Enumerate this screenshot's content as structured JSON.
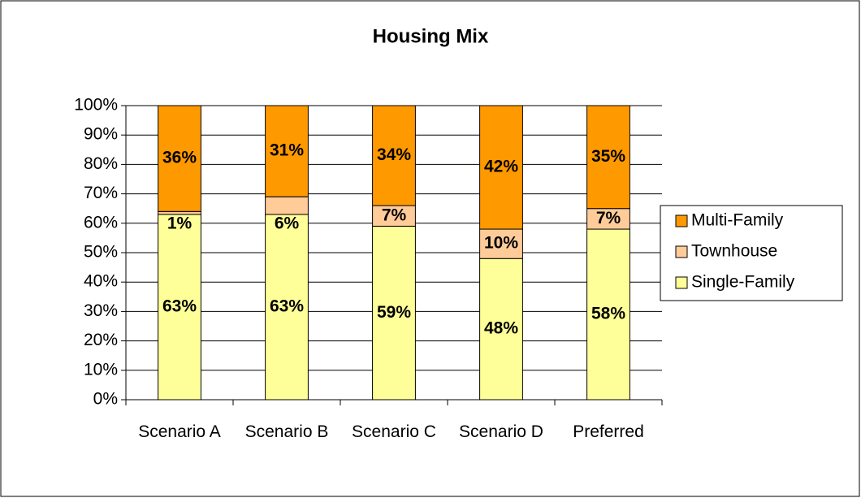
{
  "chart_data": {
    "type": "stacked_bar",
    "title": "Housing Mix",
    "categories": [
      "Scenario A",
      "Scenario B",
      "Scenario C",
      "Scenario D",
      "Preferred"
    ],
    "series": [
      {
        "name": "Single-Family",
        "color": "#ffff99",
        "values": [
          63,
          63,
          59,
          48,
          58
        ],
        "value_labels": [
          "63%",
          "63%",
          "59%",
          "48%",
          "58%"
        ]
      },
      {
        "name": "Townhouse",
        "color": "#ffcc99",
        "values": [
          1,
          6,
          7,
          10,
          7
        ],
        "value_labels": [
          "1%",
          "6%",
          "7%",
          "10%",
          "7%"
        ]
      },
      {
        "name": "Multi-Family",
        "color": "#ff9900",
        "values": [
          36,
          31,
          34,
          42,
          35
        ],
        "value_labels": [
          "36%",
          "31%",
          "34%",
          "42%",
          "35%"
        ]
      }
    ],
    "ylim": [
      0,
      100
    ],
    "yticks": [
      {
        "value": 0,
        "label": "0%"
      },
      {
        "value": 10,
        "label": "10%"
      },
      {
        "value": 20,
        "label": "20%"
      },
      {
        "value": 30,
        "label": "30%"
      },
      {
        "value": 40,
        "label": "40%"
      },
      {
        "value": 50,
        "label": "50%"
      },
      {
        "value": 60,
        "label": "60%"
      },
      {
        "value": 70,
        "label": "70%"
      },
      {
        "value": 80,
        "label": "80%"
      },
      {
        "value": 90,
        "label": "90%"
      },
      {
        "value": 100,
        "label": "100%"
      }
    ],
    "grid": true,
    "legend": "right"
  }
}
